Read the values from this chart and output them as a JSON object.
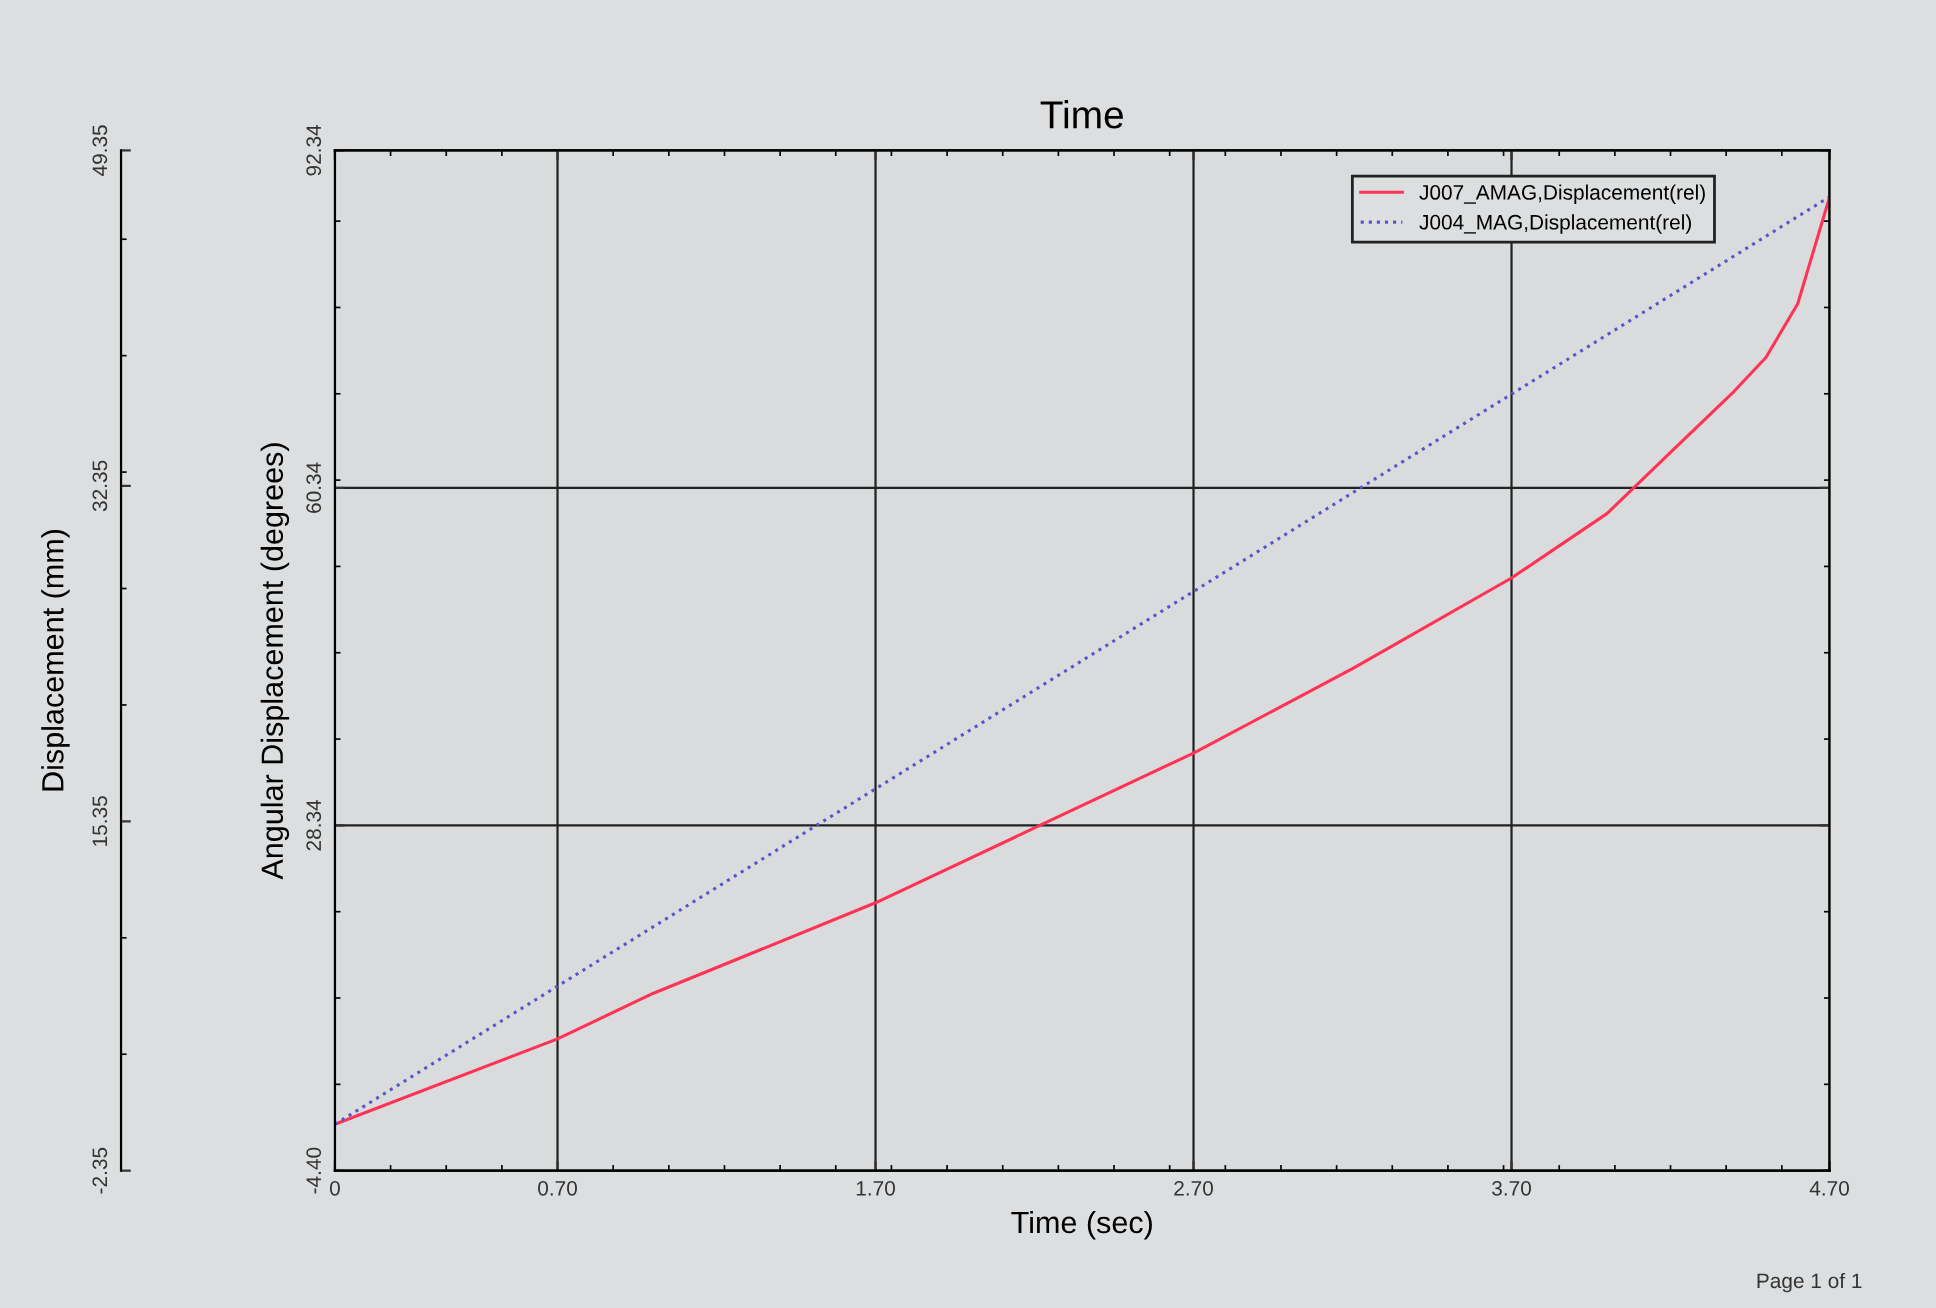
{
  "chart_data": {
    "type": "line",
    "title": "Time",
    "xlabel": "Time (sec)",
    "ylabel": "Angular Displacement (degrees)",
    "y2label": "Displacement (mm)",
    "xlim": [
      0,
      4.7
    ],
    "xticks": [
      {
        "value": 0,
        "label": "0"
      },
      {
        "value": 0.7,
        "label": "0.70"
      },
      {
        "value": 1.7,
        "label": "1.70"
      },
      {
        "value": 2.7,
        "label": "2.70"
      },
      {
        "value": 3.7,
        "label": "3.70"
      },
      {
        "value": 4.7,
        "label": "4.70"
      }
    ],
    "ylim": [
      -4.4,
      92.34
    ],
    "yticks": [
      {
        "value": -4.4,
        "label": "-4.40"
      },
      28.34,
      60.34,
      92.34
    ],
    "y2lim": [
      -2.35,
      49.35
    ],
    "y2ticks": [
      -2.35,
      15.35,
      32.35,
      49.35
    ],
    "grid": true,
    "legend": "top right",
    "annotations": [
      "Page 1 of 1"
    ],
    "series": [
      {
        "name": "J007_AMAG,Displacement(rel)",
        "color": "#ff3355",
        "line_style": "solid",
        "x": [
          0,
          0.7,
          1.0,
          1.7,
          2.2,
          2.7,
          3.2,
          3.7,
          4.0,
          4.2,
          4.4,
          4.5,
          4.6,
          4.7
        ],
        "values": [
          0,
          8.1,
          12.4,
          21.0,
          28.1,
          35.2,
          43.2,
          51.8,
          57.9,
          63.7,
          69.5,
          72.7,
          77.8,
          87.9
        ]
      },
      {
        "name": "J004_MAG,Displacement(rel)",
        "color": "#5555cc",
        "line_style": "dotted",
        "axis": "y2",
        "x": [
          0,
          0.7,
          1.7,
          2.7,
          3.7,
          4.7
        ],
        "values": [
          0,
          7,
          17,
          27,
          37,
          47
        ]
      }
    ]
  }
}
